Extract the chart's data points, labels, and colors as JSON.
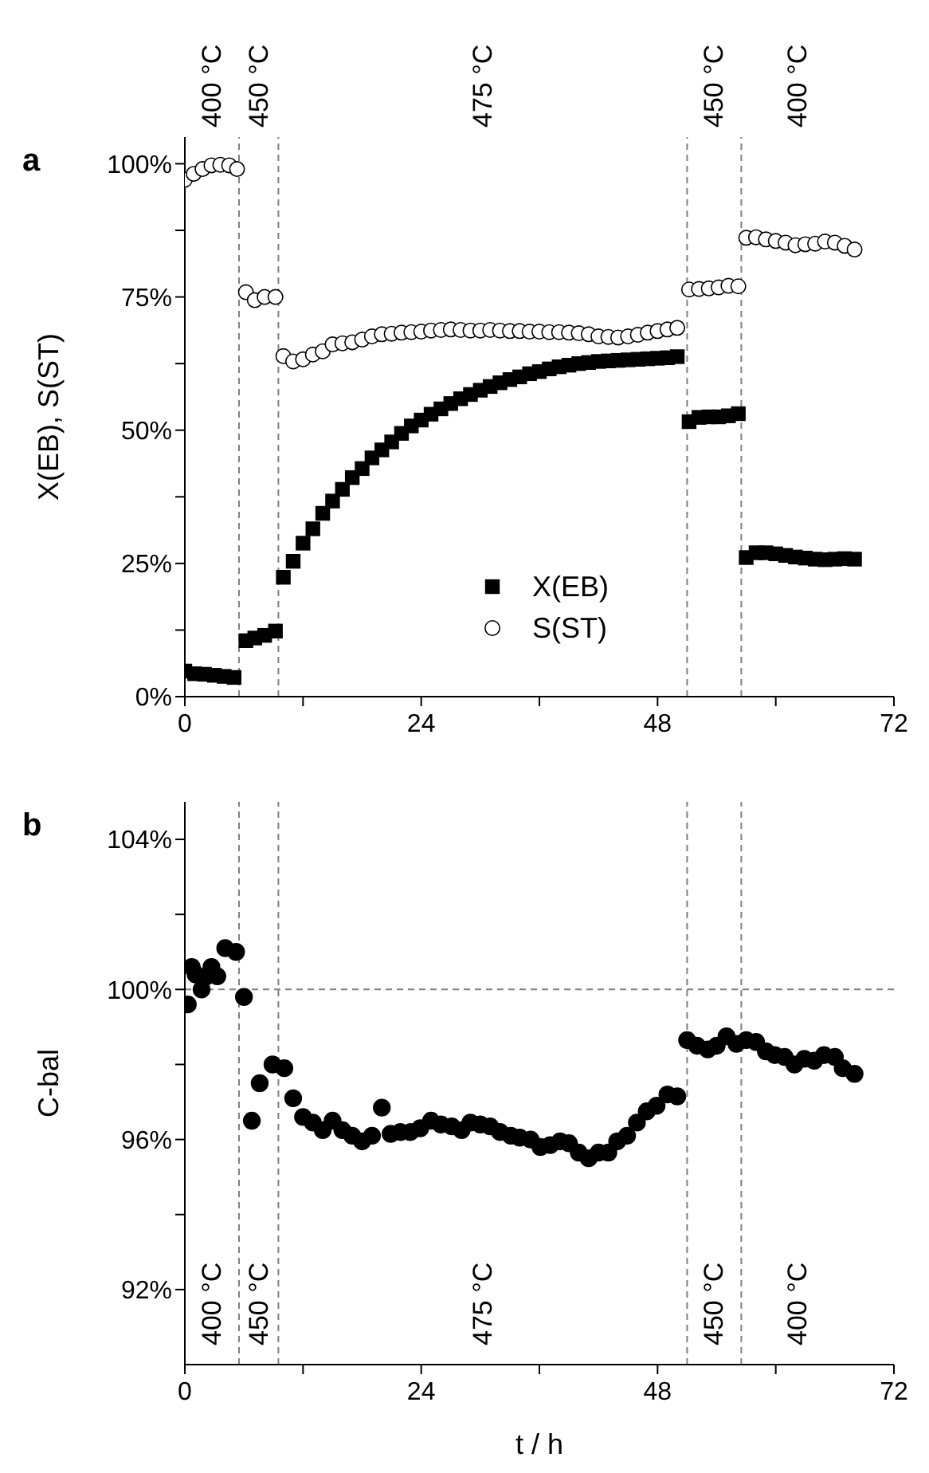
{
  "chart_data": [
    {
      "type": "scatter",
      "title": "a",
      "ylabel": "X(EB), S(ST)",
      "xlim": [
        0,
        72
      ],
      "xticks": [
        0,
        {
          "value": 12,
          "label": null
        },
        24,
        {
          "value": 36,
          "label": null
        },
        48,
        {
          "value": 60,
          "label": null
        },
        72
      ],
      "ylim": [
        0,
        105
      ],
      "yticks": [
        {
          "value": 0,
          "label": "0%"
        },
        {
          "value": 12.5,
          "label": null
        },
        {
          "value": 25,
          "label": "25%"
        },
        {
          "value": 37.5,
          "label": null
        },
        {
          "value": 50,
          "label": "50%"
        },
        {
          "value": 62.5,
          "label": null
        },
        {
          "value": 75,
          "label": "75%"
        },
        {
          "value": 87.5,
          "label": null
        },
        {
          "value": 100,
          "label": "100%"
        }
      ],
      "legend": "bottom",
      "grid": false,
      "series": [
        {
          "name": "X(EB)",
          "color": "#000000",
          "marker": "square",
          "x": [
            0,
            1,
            2,
            3,
            4,
            5,
            6.2,
            7.1,
            8.1,
            9.2,
            10,
            11,
            12,
            13,
            14,
            15,
            16,
            17,
            18,
            19,
            20,
            21,
            22,
            23,
            24,
            25,
            26,
            27,
            28,
            29,
            30,
            31,
            32,
            33,
            34,
            35,
            36,
            37,
            38,
            39,
            40,
            41,
            42,
            43,
            44,
            45,
            46,
            47,
            48,
            49,
            50,
            51.2,
            52.2,
            53.2,
            54.2,
            55.2,
            56.2,
            57,
            58,
            59,
            60,
            61,
            62,
            63,
            64,
            65,
            66,
            67,
            68
          ],
          "values": [
            4.8,
            4.3,
            4.2,
            4.0,
            3.8,
            3.6,
            10.5,
            11.0,
            11.5,
            12.3,
            22.4,
            25.4,
            28.8,
            31.5,
            34.4,
            36.7,
            38.9,
            41.1,
            42.8,
            44.8,
            46.3,
            47.8,
            49.4,
            50.8,
            51.9,
            53.0,
            54.0,
            55.0,
            55.9,
            56.7,
            57.5,
            58.2,
            58.9,
            59.5,
            60.0,
            60.6,
            61.0,
            61.5,
            61.9,
            62.2,
            62.5,
            62.7,
            62.9,
            63.0,
            63.1,
            63.2,
            63.3,
            63.4,
            63.5,
            63.6,
            63.8,
            51.6,
            52.4,
            52.5,
            52.5,
            52.7,
            53.1,
            26.1,
            27.0,
            27.0,
            26.8,
            26.5,
            26.2,
            26.0,
            25.8,
            25.7,
            25.8,
            25.9,
            25.8
          ]
        },
        {
          "name": "S(ST)",
          "color": "#ffffff",
          "marker": "circle",
          "x": [
            0,
            0.9,
            1.8,
            2.7,
            3.6,
            4.5,
            5.3,
            6.2,
            7.1,
            8.1,
            9.2,
            10,
            11,
            12,
            13,
            14,
            15,
            16,
            17,
            18,
            19,
            20,
            21,
            22,
            23,
            24,
            25,
            26,
            27,
            28,
            29,
            30,
            31,
            32,
            33,
            34,
            35,
            36,
            37,
            38,
            39,
            40,
            41,
            42,
            43,
            44,
            45,
            46,
            47,
            48,
            49,
            50,
            51.2,
            52.2,
            53.2,
            54.2,
            55.2,
            56.2,
            57,
            58,
            59,
            60,
            61,
            62,
            63,
            64,
            65,
            66,
            67,
            68
          ],
          "values": [
            97,
            98.1,
            99,
            99.7,
            99.8,
            99.7,
            99.0,
            75.9,
            74.4,
            75,
            75,
            63.9,
            62.9,
            63.3,
            64.2,
            64.8,
            66.1,
            66.3,
            66.5,
            67.0,
            67.6,
            68.0,
            68.1,
            68.3,
            68.4,
            68.5,
            68.7,
            68.8,
            68.9,
            68.8,
            68.7,
            68.7,
            68.8,
            68.7,
            68.6,
            68.6,
            68.5,
            68.5,
            68.4,
            68.4,
            68.3,
            68.2,
            68.0,
            67.6,
            67.5,
            67.4,
            67.6,
            67.9,
            68.3,
            68.6,
            68.9,
            69.2,
            76.4,
            76.5,
            76.6,
            76.8,
            77.1,
            77.0,
            86.1,
            86.2,
            85.8,
            85.5,
            85.2,
            84.7,
            84.9,
            85.0,
            85.4,
            85.2,
            84.6,
            83.9
          ]
        }
      ],
      "ref_lines": [
        {
          "axis": "x",
          "value": 5.5,
          "color": "#808080",
          "line_style": "dashed"
        },
        {
          "axis": "x",
          "value": 9.5,
          "color": "#808080",
          "line_style": "dashed"
        },
        {
          "axis": "x",
          "value": 51,
          "color": "#808080",
          "line_style": "dashed"
        },
        {
          "axis": "x",
          "value": 56.5,
          "color": "#808080",
          "line_style": "dashed"
        }
      ],
      "annotations": [
        "400 °C",
        "450 °C",
        "475 °C",
        "450 °C",
        "400 °C"
      ]
    },
    {
      "type": "scatter",
      "title": "b",
      "xlabel": "t / h",
      "ylabel": "C-bal",
      "xlim": [
        0,
        72
      ],
      "xticks": [
        0,
        {
          "value": 12,
          "label": null
        },
        24,
        {
          "value": 36,
          "label": null
        },
        48,
        {
          "value": 60,
          "label": null
        },
        72
      ],
      "ylim": [
        90,
        105
      ],
      "yticks": [
        {
          "value": 92,
          "label": "92%"
        },
        {
          "value": 94,
          "label": null
        },
        {
          "value": 96,
          "label": "96%"
        },
        {
          "value": 98,
          "label": null
        },
        {
          "value": 100,
          "label": "100%"
        },
        {
          "value": 102,
          "label": null
        },
        {
          "value": 104,
          "label": "104%"
        }
      ],
      "grid": false,
      "series": [
        {
          "color": "#000000",
          "marker": "circle",
          "x": [
            0.3,
            0.7,
            1.1,
            1.7,
            2.2,
            2.7,
            3.3,
            4.1,
            5.2,
            6.0,
            6.8,
            7.6,
            8.9,
            10.1,
            11.0,
            12.0,
            13.0,
            14.0,
            15.0,
            16.0,
            17.0,
            18.0,
            19.0,
            20.0,
            20.9,
            21.9,
            22.9,
            23.9,
            25.0,
            26.0,
            27.1,
            28.1,
            29.0,
            30.0,
            31.0,
            32.0,
            33.1,
            34.0,
            35.1,
            36.1,
            37.1,
            38.1,
            39.0,
            40.0,
            41.0,
            42.0,
            43.0,
            43.9,
            44.9,
            45.9,
            46.9,
            47.9,
            49.0,
            50.0,
            51.0,
            52.0,
            53.1,
            54.0,
            55.0,
            56.0,
            57.0,
            58.0,
            59.0,
            59.9,
            60.9,
            61.9,
            62.9,
            63.9,
            64.9,
            66.0,
            66.8,
            68.0
          ],
          "values": [
            99.6,
            100.6,
            100.4,
            100.0,
            100.35,
            100.6,
            100.35,
            101.1,
            101.0,
            99.8,
            96.5,
            97.5,
            98.0,
            97.9,
            97.1,
            96.6,
            96.45,
            96.25,
            96.5,
            96.25,
            96.1,
            95.95,
            96.1,
            96.85,
            96.15,
            96.2,
            96.2,
            96.3,
            96.5,
            96.4,
            96.35,
            96.25,
            96.45,
            96.4,
            96.35,
            96.2,
            96.1,
            96.05,
            96.0,
            95.8,
            95.85,
            95.95,
            95.9,
            95.65,
            95.5,
            95.65,
            95.65,
            95.95,
            96.1,
            96.45,
            96.75,
            96.9,
            97.2,
            97.15,
            98.65,
            98.5,
            98.4,
            98.5,
            98.75,
            98.55,
            98.65,
            98.6,
            98.35,
            98.25,
            98.2,
            98.0,
            98.15,
            98.1,
            98.25,
            98.2,
            97.9,
            97.75
          ]
        }
      ],
      "ref_lines": [
        {
          "axis": "x",
          "value": 5.5,
          "color": "#808080",
          "line_style": "dashed"
        },
        {
          "axis": "x",
          "value": 9.5,
          "color": "#808080",
          "line_style": "dashed"
        },
        {
          "axis": "x",
          "value": 51,
          "color": "#808080",
          "line_style": "dashed"
        },
        {
          "axis": "x",
          "value": 56.5,
          "color": "#808080",
          "line_style": "dashed"
        },
        {
          "axis": "y",
          "value": 100,
          "color": "#808080",
          "line_style": "dashed"
        }
      ],
      "annotations": [
        "400 °C",
        "450 °C",
        "475 °C",
        "450 °C",
        "400 °C"
      ]
    }
  ]
}
